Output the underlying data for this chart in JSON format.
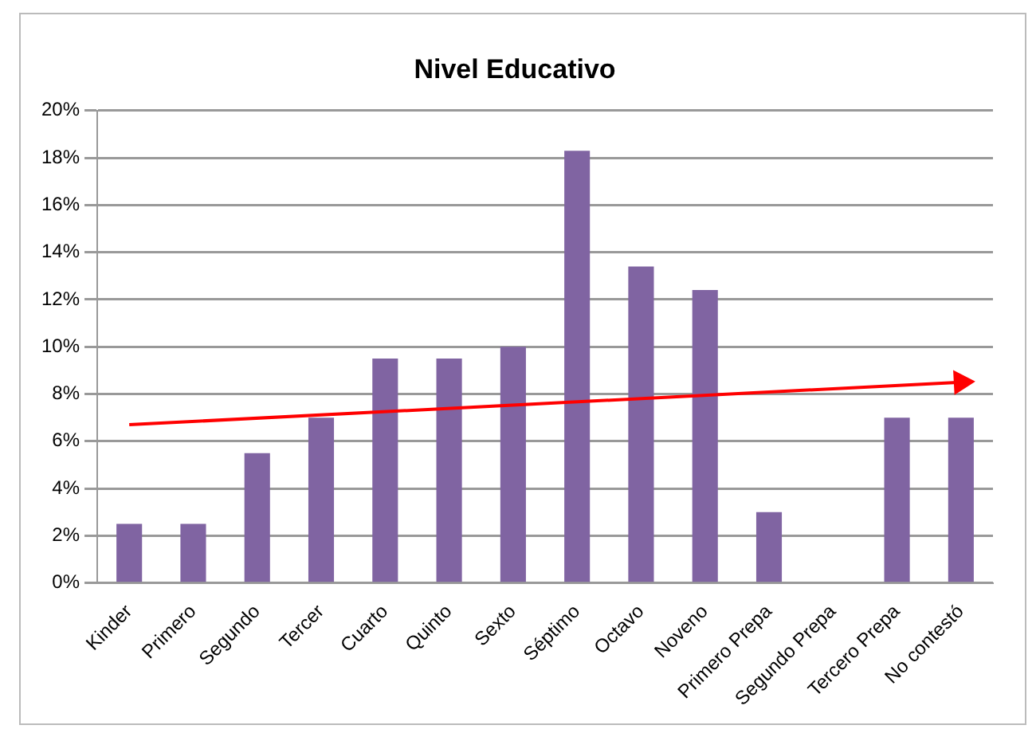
{
  "chart_data": {
    "type": "bar",
    "title": "Nivel Educativo",
    "categories": [
      "Kinder",
      "Primero",
      "Segundo",
      "Tercer",
      "Cuarto",
      "Quinto",
      "Sexto",
      "Séptimo",
      "Octavo",
      "Noveno",
      "Primero Prepa",
      "Segundo Prepa",
      "Tercero Prepa",
      "No contestó"
    ],
    "series": [
      {
        "color": "#8064a2",
        "values": [
          2.5,
          2.5,
          5.5,
          7,
          9.5,
          9.5,
          10,
          18.3,
          13.4,
          12.4,
          3,
          0,
          7,
          7
        ]
      },
      {
        "type": "line",
        "color": "#ff0000",
        "values": [
          6.7,
          null,
          null,
          null,
          null,
          null,
          null,
          null,
          null,
          null,
          null,
          null,
          null,
          8.5
        ]
      }
    ],
    "ylim": [
      0,
      20
    ],
    "yticks": [
      {
        "value": 0,
        "label": "0%"
      },
      {
        "value": 2,
        "label": "2%"
      },
      {
        "value": 4,
        "label": "4%"
      },
      {
        "value": 6,
        "label": "6%"
      },
      {
        "value": 8,
        "label": "8%"
      },
      {
        "value": 10,
        "label": "10%"
      },
      {
        "value": 12,
        "label": "12%"
      },
      {
        "value": 14,
        "label": "14%"
      },
      {
        "value": 16,
        "label": "16%"
      },
      {
        "value": 18,
        "label": "18%"
      },
      {
        "value": 20,
        "label": "20%"
      }
    ],
    "grid": "y",
    "legend": false
  }
}
